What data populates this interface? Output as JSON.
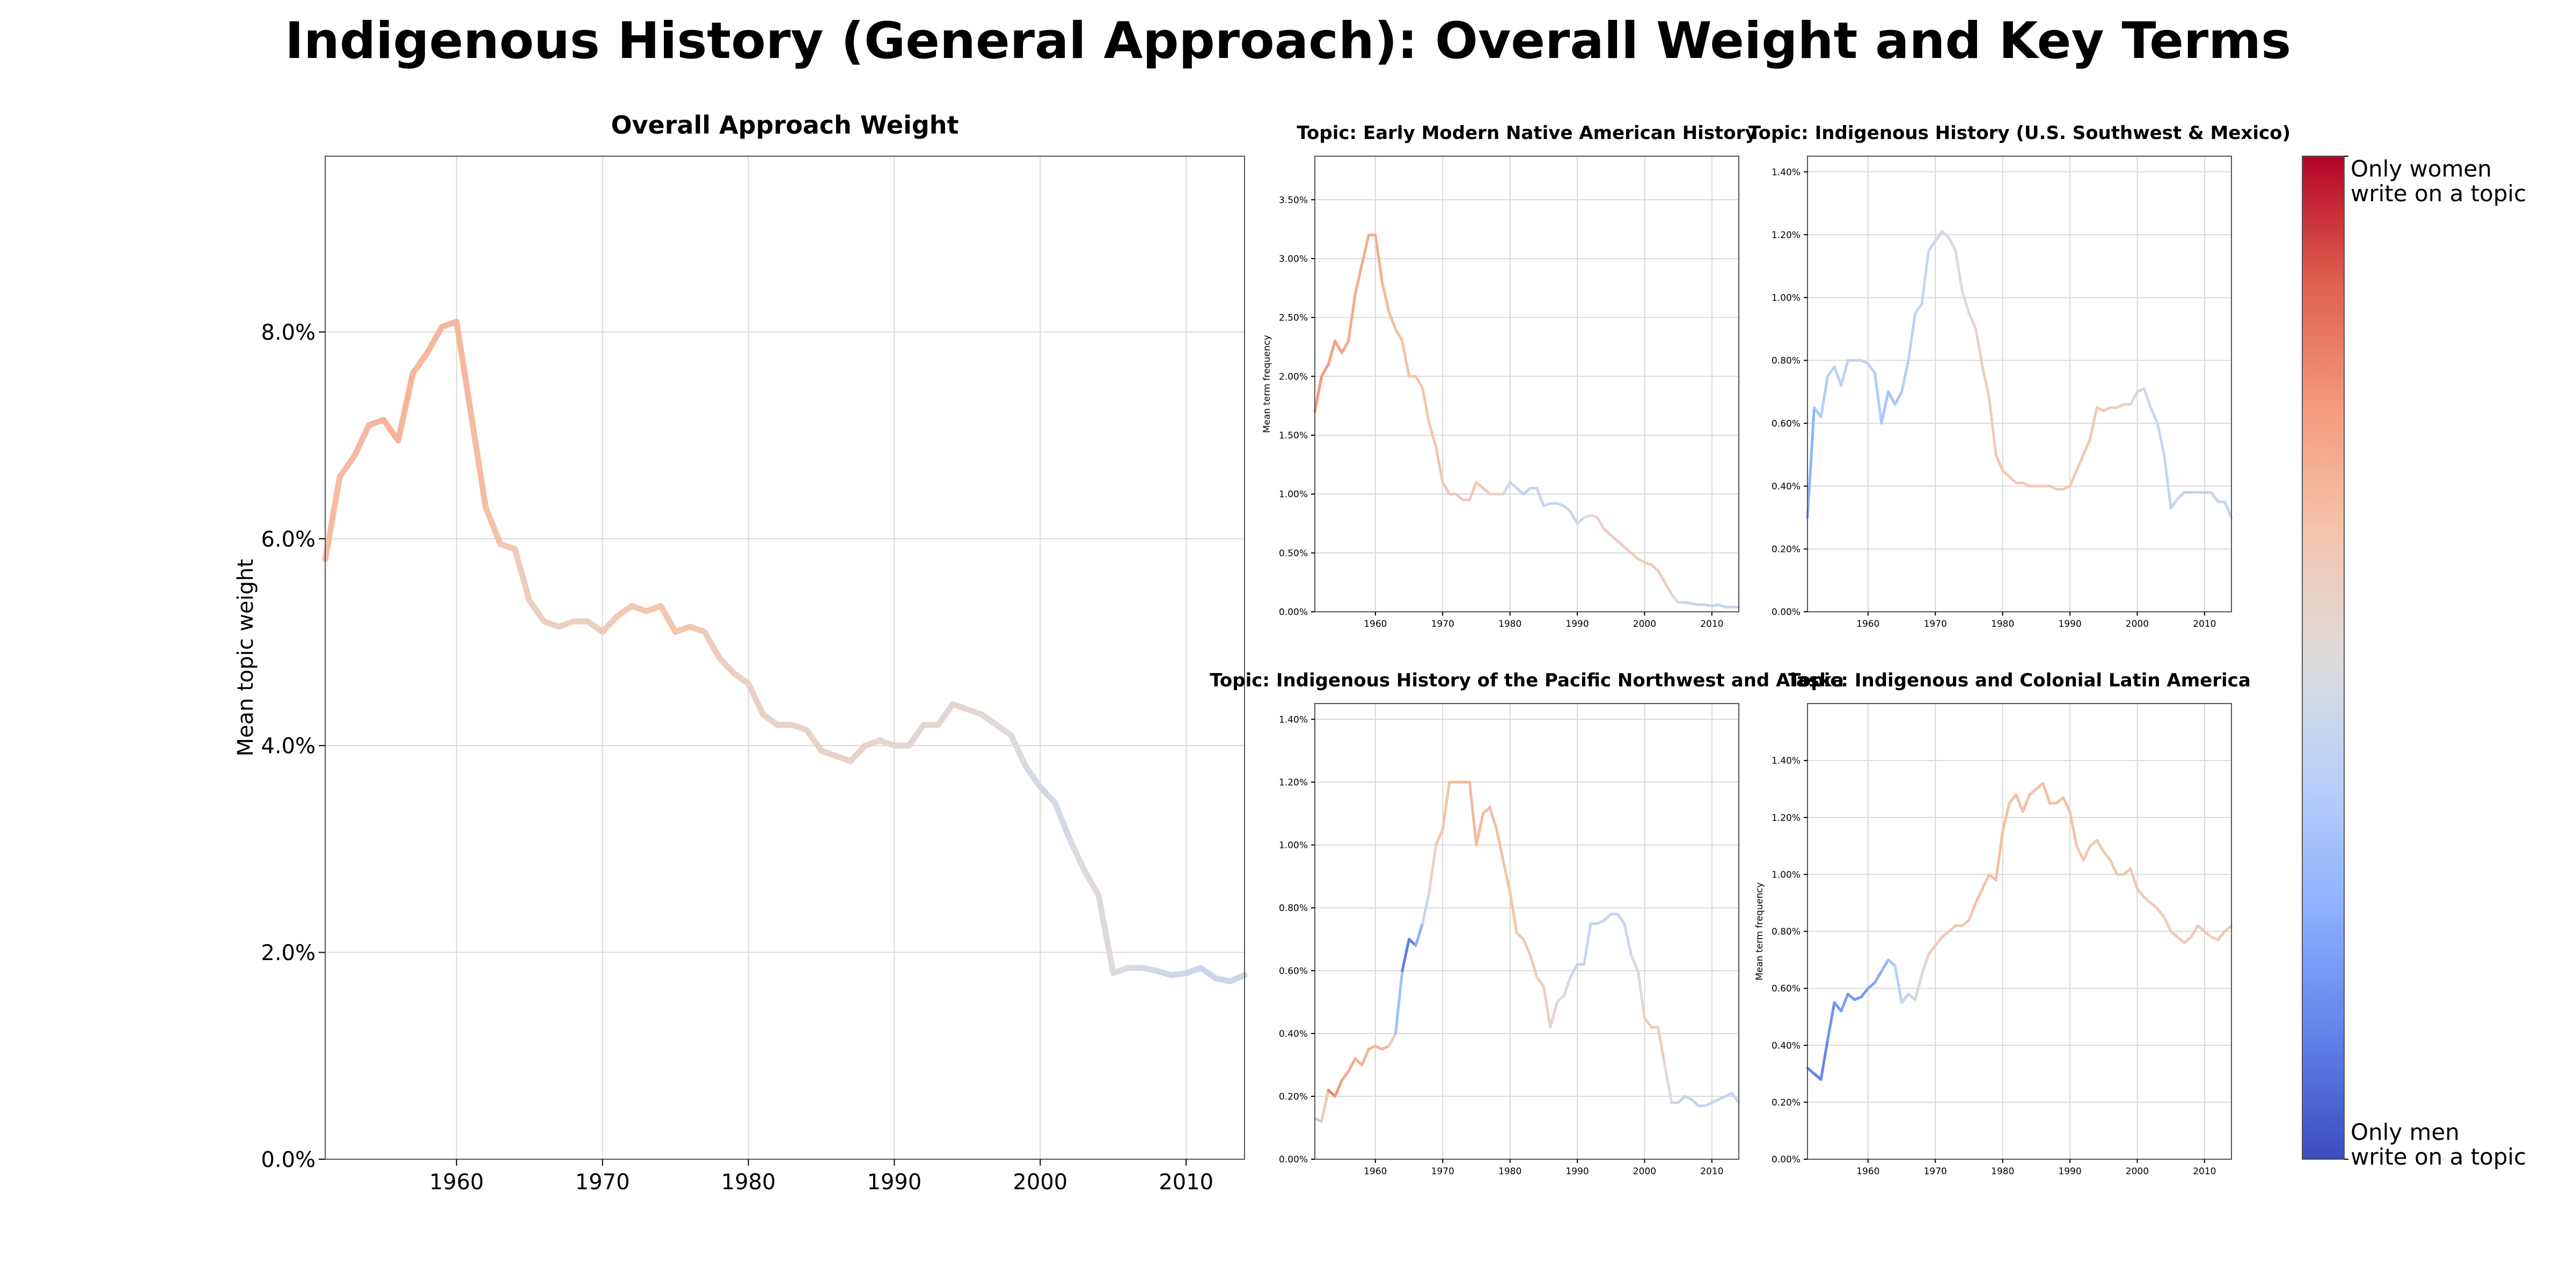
{
  "title": "Indigenous History (General Approach): Overall Weight and Key Terms",
  "colors": {
    "women": "#b40426",
    "men": "#3b4cc0",
    "grid": "#d9d9d9",
    "axis": "#555555",
    "text": "#000000"
  },
  "colorbar": {
    "top_label": "Only women\nwrite on a topic",
    "bottom_label": "Only men\nwrite on a topic",
    "colormap": "coolwarm"
  },
  "chart_data": [
    {
      "id": "overall",
      "type": "line",
      "title": "Overall Approach Weight",
      "xlabel": "",
      "ylabel": "Mean topic weight",
      "xlim": [
        1951,
        2014
      ],
      "ylim": [
        0,
        9.7
      ],
      "x_ticks": [
        1960,
        1970,
        1980,
        1990,
        2000,
        2010
      ],
      "y_ticks": [
        0,
        2,
        4,
        6,
        8
      ],
      "y_tick_labels": [
        "0.0%",
        "2.0%",
        "4.0%",
        "6.0%",
        "8.0%"
      ],
      "grid": true,
      "x": [
        1951,
        1952,
        1953,
        1954,
        1955,
        1956,
        1957,
        1958,
        1959,
        1960,
        1961,
        1962,
        1963,
        1964,
        1965,
        1966,
        1967,
        1968,
        1969,
        1970,
        1971,
        1972,
        1973,
        1974,
        1975,
        1976,
        1977,
        1978,
        1979,
        1980,
        1981,
        1982,
        1983,
        1984,
        1985,
        1986,
        1987,
        1988,
        1989,
        1990,
        1991,
        1992,
        1993,
        1994,
        1995,
        1996,
        1997,
        1998,
        1999,
        2000,
        2001,
        2002,
        2003,
        2004,
        2005,
        2006,
        2007,
        2008,
        2009,
        2010,
        2011,
        2012,
        2013,
        2014
      ],
      "y": [
        5.8,
        6.6,
        6.8,
        7.1,
        7.15,
        6.95,
        7.6,
        7.8,
        8.05,
        8.1,
        7.2,
        6.3,
        5.95,
        5.9,
        5.4,
        5.2,
        5.15,
        5.2,
        5.2,
        5.1,
        5.25,
        5.35,
        5.3,
        5.35,
        5.1,
        5.15,
        5.1,
        4.85,
        4.7,
        4.6,
        4.3,
        4.2,
        4.2,
        4.15,
        3.95,
        3.9,
        3.85,
        4.0,
        4.05,
        4.0,
        4.0,
        4.2,
        4.2,
        4.4,
        4.35,
        4.3,
        4.2,
        4.1,
        3.8,
        3.6,
        3.45,
        3.1,
        2.8,
        2.55,
        1.8,
        1.85,
        1.85,
        1.82,
        1.78,
        1.8,
        1.85,
        1.75,
        1.72,
        1.78
      ],
      "gender": [
        0.65,
        0.65,
        0.65,
        0.66,
        0.67,
        0.67,
        0.67,
        0.66,
        0.66,
        0.66,
        0.66,
        0.64,
        0.62,
        0.6,
        0.58,
        0.56,
        0.56,
        0.56,
        0.58,
        0.58,
        0.6,
        0.62,
        0.62,
        0.62,
        0.62,
        0.62,
        0.6,
        0.58,
        0.58,
        0.56,
        0.55,
        0.55,
        0.55,
        0.55,
        0.55,
        0.55,
        0.55,
        0.55,
        0.54,
        0.53,
        0.53,
        0.53,
        0.53,
        0.54,
        0.54,
        0.53,
        0.52,
        0.5,
        0.48,
        0.46,
        0.46,
        0.47,
        0.5,
        0.52,
        0.5,
        0.48,
        0.47,
        0.46,
        0.45,
        0.44,
        0.44,
        0.44,
        0.44,
        0.44
      ]
    },
    {
      "id": "early-modern",
      "type": "line",
      "title": "Topic: Early Modern Native American History",
      "xlabel": "",
      "ylabel": "Mean term frequency",
      "xlim": [
        1951,
        2014
      ],
      "ylim": [
        0,
        3.87
      ],
      "x_ticks": [
        1960,
        1970,
        1980,
        1990,
        2000,
        2010
      ],
      "y_ticks": [
        0,
        0.5,
        1.0,
        1.5,
        2.0,
        2.5,
        3.0,
        3.5
      ],
      "y_tick_labels": [
        "0.00%",
        "0.50%",
        "1.00%",
        "1.50%",
        "2.00%",
        "2.50%",
        "3.00%",
        "3.50%"
      ],
      "grid": true,
      "x": [
        1951,
        1952,
        1953,
        1954,
        1955,
        1956,
        1957,
        1958,
        1959,
        1960,
        1961,
        1962,
        1963,
        1964,
        1965,
        1966,
        1967,
        1968,
        1969,
        1970,
        1971,
        1972,
        1973,
        1974,
        1975,
        1976,
        1977,
        1978,
        1979,
        1980,
        1981,
        1982,
        1983,
        1984,
        1985,
        1986,
        1987,
        1988,
        1989,
        1990,
        1991,
        1992,
        1993,
        1994,
        1995,
        1996,
        1997,
        1998,
        1999,
        2000,
        2001,
        2002,
        2003,
        2004,
        2005,
        2006,
        2007,
        2008,
        2009,
        2010,
        2011,
        2012,
        2013,
        2014
      ],
      "y": [
        1.7,
        2.0,
        2.1,
        2.3,
        2.2,
        2.3,
        2.7,
        2.95,
        3.2,
        3.2,
        2.8,
        2.55,
        2.4,
        2.3,
        2.0,
        2.0,
        1.9,
        1.6,
        1.4,
        1.1,
        1.0,
        1.0,
        0.95,
        0.95,
        1.1,
        1.05,
        1.0,
        1.0,
        1.0,
        1.1,
        1.05,
        1.0,
        1.05,
        1.05,
        0.9,
        0.92,
        0.92,
        0.9,
        0.85,
        0.75,
        0.8,
        0.82,
        0.8,
        0.7,
        0.65,
        0.6,
        0.55,
        0.5,
        0.45,
        0.42,
        0.4,
        0.35,
        0.25,
        0.15,
        0.08,
        0.08,
        0.07,
        0.06,
        0.06,
        0.05,
        0.06,
        0.04,
        0.04,
        0.04
      ],
      "gender": [
        0.75,
        0.75,
        0.74,
        0.73,
        0.72,
        0.71,
        0.7,
        0.7,
        0.7,
        0.7,
        0.68,
        0.66,
        0.65,
        0.64,
        0.63,
        0.62,
        0.62,
        0.62,
        0.62,
        0.62,
        0.61,
        0.6,
        0.6,
        0.6,
        0.6,
        0.6,
        0.58,
        0.55,
        0.5,
        0.45,
        0.43,
        0.42,
        0.42,
        0.42,
        0.42,
        0.42,
        0.42,
        0.42,
        0.43,
        0.45,
        0.48,
        0.52,
        0.56,
        0.58,
        0.58,
        0.58,
        0.58,
        0.58,
        0.58,
        0.6,
        0.6,
        0.6,
        0.58,
        0.55,
        0.5,
        0.45,
        0.42,
        0.42,
        0.42,
        0.42,
        0.42,
        0.42,
        0.42,
        0.42
      ]
    },
    {
      "id": "southwest",
      "type": "line",
      "title": "Topic: Indigenous History (U.S. Southwest & Mexico)",
      "xlabel": "",
      "ylabel": "",
      "xlim": [
        1951,
        2014
      ],
      "ylim": [
        0,
        1.45
      ],
      "x_ticks": [
        1960,
        1970,
        1980,
        1990,
        2000,
        2010
      ],
      "y_ticks": [
        0,
        0.2,
        0.4,
        0.6,
        0.8,
        1.0,
        1.2,
        1.4
      ],
      "y_tick_labels": [
        "0.00%",
        "0.20%",
        "0.40%",
        "0.60%",
        "0.80%",
        "1.00%",
        "1.20%",
        "1.40%"
      ],
      "grid": true,
      "x": [
        1951,
        1952,
        1953,
        1954,
        1955,
        1956,
        1957,
        1958,
        1959,
        1960,
        1961,
        1962,
        1963,
        1964,
        1965,
        1966,
        1967,
        1968,
        1969,
        1970,
        1971,
        1972,
        1973,
        1974,
        1975,
        1976,
        1977,
        1978,
        1979,
        1980,
        1981,
        1982,
        1983,
        1984,
        1985,
        1986,
        1987,
        1988,
        1989,
        1990,
        1991,
        1992,
        1993,
        1994,
        1995,
        1996,
        1997,
        1998,
        1999,
        2000,
        2001,
        2002,
        2003,
        2004,
        2005,
        2006,
        2007,
        2008,
        2009,
        2010,
        2011,
        2012,
        2013,
        2014
      ],
      "y": [
        0.3,
        0.65,
        0.62,
        0.75,
        0.78,
        0.72,
        0.8,
        0.8,
        0.8,
        0.79,
        0.76,
        0.6,
        0.7,
        0.66,
        0.7,
        0.8,
        0.95,
        0.98,
        1.15,
        1.18,
        1.21,
        1.19,
        1.15,
        1.02,
        0.95,
        0.9,
        0.78,
        0.68,
        0.5,
        0.45,
        0.43,
        0.41,
        0.41,
        0.4,
        0.4,
        0.4,
        0.4,
        0.39,
        0.39,
        0.4,
        0.45,
        0.5,
        0.55,
        0.65,
        0.64,
        0.65,
        0.65,
        0.66,
        0.66,
        0.7,
        0.71,
        0.65,
        0.6,
        0.5,
        0.33,
        0.36,
        0.38,
        0.38,
        0.38,
        0.38,
        0.38,
        0.35,
        0.35,
        0.3
      ],
      "gender": [
        0.2,
        0.32,
        0.35,
        0.38,
        0.4,
        0.4,
        0.4,
        0.4,
        0.4,
        0.4,
        0.38,
        0.33,
        0.33,
        0.33,
        0.35,
        0.38,
        0.4,
        0.42,
        0.44,
        0.45,
        0.46,
        0.47,
        0.48,
        0.5,
        0.52,
        0.54,
        0.56,
        0.58,
        0.6,
        0.6,
        0.6,
        0.6,
        0.6,
        0.6,
        0.6,
        0.6,
        0.6,
        0.6,
        0.6,
        0.6,
        0.61,
        0.62,
        0.62,
        0.62,
        0.62,
        0.6,
        0.58,
        0.55,
        0.52,
        0.48,
        0.45,
        0.44,
        0.44,
        0.44,
        0.42,
        0.42,
        0.42,
        0.42,
        0.42,
        0.42,
        0.42,
        0.42,
        0.42,
        0.42
      ]
    },
    {
      "id": "pacific-northwest",
      "type": "line",
      "title": "Topic: Indigenous History of the Pacific Northwest and Alaska",
      "xlabel": "",
      "ylabel": "",
      "xlim": [
        1951,
        2014
      ],
      "ylim": [
        0,
        1.45
      ],
      "x_ticks": [
        1960,
        1970,
        1980,
        1990,
        2000,
        2010
      ],
      "y_ticks": [
        0,
        0.2,
        0.4,
        0.6,
        0.8,
        1.0,
        1.2,
        1.4
      ],
      "y_tick_labels": [
        "0.00%",
        "0.20%",
        "0.40%",
        "0.60%",
        "0.80%",
        "1.00%",
        "1.20%",
        "1.40%"
      ],
      "grid": true,
      "x": [
        1951,
        1952,
        1953,
        1954,
        1955,
        1956,
        1957,
        1958,
        1959,
        1960,
        1961,
        1962,
        1963,
        1964,
        1965,
        1966,
        1967,
        1968,
        1969,
        1970,
        1971,
        1972,
        1973,
        1974,
        1975,
        1976,
        1977,
        1978,
        1979,
        1980,
        1981,
        1982,
        1983,
        1984,
        1985,
        1986,
        1987,
        1988,
        1989,
        1990,
        1991,
        1992,
        1993,
        1994,
        1995,
        1996,
        1997,
        1998,
        1999,
        2000,
        2001,
        2002,
        2003,
        2004,
        2005,
        2006,
        2007,
        2008,
        2009,
        2010,
        2011,
        2012,
        2013,
        2014
      ],
      "y": [
        0.13,
        0.12,
        0.22,
        0.2,
        0.25,
        0.28,
        0.32,
        0.3,
        0.35,
        0.36,
        0.35,
        0.36,
        0.4,
        0.6,
        0.7,
        0.68,
        0.75,
        0.85,
        1.0,
        1.05,
        1.2,
        1.2,
        1.2,
        1.2,
        1.0,
        1.1,
        1.12,
        1.05,
        0.95,
        0.85,
        0.72,
        0.7,
        0.65,
        0.58,
        0.55,
        0.42,
        0.5,
        0.52,
        0.58,
        0.62,
        0.62,
        0.75,
        0.75,
        0.76,
        0.78,
        0.78,
        0.75,
        0.65,
        0.6,
        0.45,
        0.42,
        0.42,
        0.3,
        0.18,
        0.18,
        0.2,
        0.19,
        0.17,
        0.17,
        0.18,
        0.19,
        0.2,
        0.21,
        0.18
      ],
      "gender": [
        0.35,
        0.38,
        0.82,
        0.78,
        0.72,
        0.7,
        0.7,
        0.68,
        0.68,
        0.68,
        0.68,
        0.66,
        0.5,
        0.12,
        0.1,
        0.15,
        0.35,
        0.5,
        0.6,
        0.62,
        0.64,
        0.66,
        0.66,
        0.66,
        0.66,
        0.66,
        0.66,
        0.65,
        0.64,
        0.63,
        0.62,
        0.61,
        0.6,
        0.6,
        0.58,
        0.56,
        0.52,
        0.48,
        0.44,
        0.42,
        0.42,
        0.42,
        0.42,
        0.42,
        0.42,
        0.42,
        0.42,
        0.45,
        0.5,
        0.55,
        0.6,
        0.6,
        0.55,
        0.45,
        0.42,
        0.42,
        0.42,
        0.42,
        0.42,
        0.42,
        0.42,
        0.42,
        0.42,
        0.42
      ]
    },
    {
      "id": "latin-america",
      "type": "line",
      "title": "Topic: Indigenous and Colonial Latin America",
      "xlabel": "",
      "ylabel": "Mean term frequency",
      "xlim": [
        1951,
        2014
      ],
      "ylim": [
        0,
        1.6
      ],
      "x_ticks": [
        1960,
        1970,
        1980,
        1990,
        2000,
        2010
      ],
      "y_ticks": [
        0,
        0.2,
        0.4,
        0.6,
        0.8,
        1.0,
        1.2,
        1.4
      ],
      "y_tick_labels": [
        "0.00%",
        "0.20%",
        "0.40%",
        "0.60%",
        "0.80%",
        "1.00%",
        "1.20%",
        "1.40%"
      ],
      "grid": true,
      "x": [
        1951,
        1952,
        1953,
        1954,
        1955,
        1956,
        1957,
        1958,
        1959,
        1960,
        1961,
        1962,
        1963,
        1964,
        1965,
        1966,
        1967,
        1968,
        1969,
        1970,
        1971,
        1972,
        1973,
        1974,
        1975,
        1976,
        1977,
        1978,
        1979,
        1980,
        1981,
        1982,
        1983,
        1984,
        1985,
        1986,
        1987,
        1988,
        1989,
        1990,
        1991,
        1992,
        1993,
        1994,
        1995,
        1996,
        1997,
        1998,
        1999,
        2000,
        2001,
        2002,
        2003,
        2004,
        2005,
        2006,
        2007,
        2008,
        2009,
        2010,
        2011,
        2012,
        2013,
        2014
      ],
      "y": [
        0.32,
        0.3,
        0.28,
        0.42,
        0.55,
        0.52,
        0.58,
        0.56,
        0.57,
        0.6,
        0.62,
        0.66,
        0.7,
        0.68,
        0.55,
        0.58,
        0.56,
        0.65,
        0.72,
        0.75,
        0.78,
        0.8,
        0.82,
        0.82,
        0.84,
        0.9,
        0.95,
        1.0,
        0.98,
        1.15,
        1.25,
        1.28,
        1.22,
        1.28,
        1.3,
        1.32,
        1.25,
        1.25,
        1.27,
        1.22,
        1.1,
        1.05,
        1.1,
        1.12,
        1.08,
        1.05,
        1.0,
        1.0,
        1.02,
        0.95,
        0.92,
        0.9,
        0.88,
        0.85,
        0.8,
        0.78,
        0.76,
        0.78,
        0.82,
        0.8,
        0.78,
        0.77,
        0.8,
        0.82
      ],
      "gender": [
        0.15,
        0.12,
        0.12,
        0.15,
        0.18,
        0.2,
        0.2,
        0.18,
        0.18,
        0.2,
        0.22,
        0.25,
        0.3,
        0.35,
        0.4,
        0.42,
        0.45,
        0.5,
        0.55,
        0.6,
        0.6,
        0.62,
        0.62,
        0.62,
        0.63,
        0.63,
        0.64,
        0.64,
        0.64,
        0.64,
        0.64,
        0.64,
        0.64,
        0.64,
        0.64,
        0.64,
        0.64,
        0.64,
        0.64,
        0.64,
        0.63,
        0.62,
        0.62,
        0.62,
        0.62,
        0.62,
        0.61,
        0.61,
        0.6,
        0.6,
        0.6,
        0.6,
        0.6,
        0.6,
        0.6,
        0.6,
        0.6,
        0.6,
        0.6,
        0.6,
        0.6,
        0.6,
        0.6,
        0.6
      ]
    }
  ]
}
